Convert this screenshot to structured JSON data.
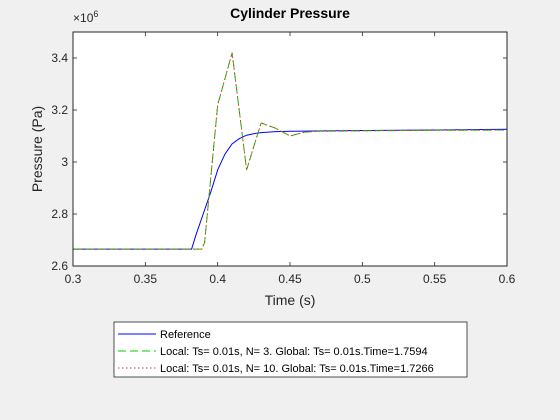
{
  "chart_data": {
    "type": "line",
    "title": "Cylinder Pressure",
    "xlabel": "Time (s)",
    "ylabel": "Pressure (Pa)",
    "y_exponent_label": "10",
    "y_exponent_power": "6",
    "xlim": [
      0.3,
      0.6
    ],
    "ylim": [
      2.6,
      3.5
    ],
    "x_ticks": [
      0.3,
      0.35,
      0.4,
      0.45,
      0.5,
      0.55,
      0.6
    ],
    "x_tick_labels": [
      "0.3",
      "0.35",
      "0.4",
      "0.45",
      "0.5",
      "0.55",
      "0.6"
    ],
    "y_ticks": [
      2.6,
      2.8,
      3.0,
      3.2,
      3.4
    ],
    "y_tick_labels": [
      "2.6",
      "2.8",
      "3",
      "3.2",
      "3.4"
    ],
    "y_scale": 1000000,
    "grid": false,
    "legend_position": "below-plot",
    "series": [
      {
        "name": "Reference",
        "color": "#0000ff",
        "dash": "solid",
        "x": [
          0.3,
          0.382,
          0.385,
          0.39,
          0.395,
          0.4,
          0.405,
          0.41,
          0.415,
          0.42,
          0.425,
          0.43,
          0.44,
          0.45,
          0.46,
          0.48,
          0.5,
          0.55,
          0.6
        ],
        "y": [
          2.665,
          2.665,
          2.72,
          2.8,
          2.88,
          2.97,
          3.03,
          3.07,
          3.09,
          3.103,
          3.109,
          3.113,
          3.117,
          3.118,
          3.119,
          3.12,
          3.121,
          3.123,
          3.126
        ]
      },
      {
        "name": "Local: Ts= 0.01s, N= 3. Global: Ts= 0.01s.Time=1.7594",
        "color": "#00cc00",
        "dash": "dashed",
        "x": [
          0.3,
          0.389,
          0.391,
          0.4,
          0.41,
          0.42,
          0.43,
          0.44,
          0.45,
          0.46,
          0.47,
          0.5,
          0.55,
          0.6
        ],
        "y": [
          2.665,
          2.665,
          2.69,
          3.22,
          3.42,
          2.97,
          3.15,
          3.13,
          3.1,
          3.115,
          3.118,
          3.12,
          3.122,
          3.123
        ]
      },
      {
        "name": "Local: Ts= 0.01s, N= 10. Global: Ts= 0.01s.Time=1.7266",
        "color": "#dd3333",
        "dash": "dotted",
        "x": [
          0.3,
          0.389,
          0.391,
          0.4,
          0.41,
          0.42,
          0.43,
          0.44,
          0.45,
          0.46,
          0.47,
          0.5,
          0.55,
          0.6
        ],
        "y": [
          2.665,
          2.665,
          2.69,
          3.22,
          3.42,
          2.97,
          3.15,
          3.13,
          3.1,
          3.115,
          3.118,
          3.12,
          3.122,
          3.123
        ]
      }
    ]
  }
}
